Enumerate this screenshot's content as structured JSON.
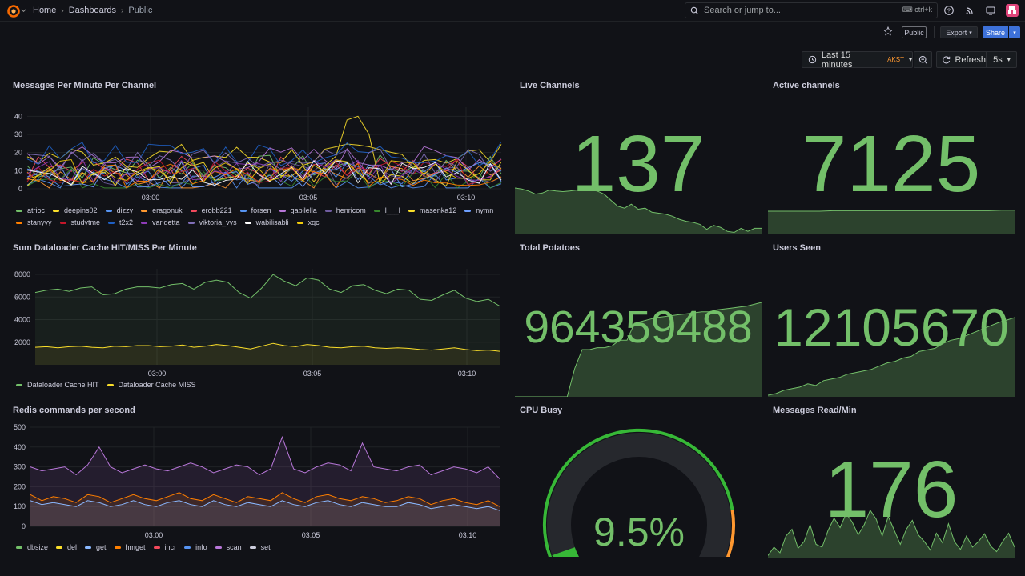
{
  "nav": {
    "home": "Home",
    "dashboards": "Dashboards",
    "current": "Public",
    "search_placeholder": "Search or jump to...",
    "search_shortcut": "ctrl+k"
  },
  "toolbar": {
    "public_badge": "Public",
    "export_label": "Export",
    "share_label": "Share",
    "time_range": "Last 15 minutes",
    "timezone": "AKST",
    "refresh_label": "Refresh",
    "refresh_interval": "5s"
  },
  "colors": {
    "green": "#73bf69",
    "bg": "#111217",
    "accent": "#3d71d9"
  },
  "panels": {
    "messages": {
      "title": "Messages Per Minute Per Channel",
      "legend": [
        {
          "name": "atrioc",
          "color": "#73bf69"
        },
        {
          "name": "deepins02",
          "color": "#fade2a"
        },
        {
          "name": "dizzy",
          "color": "#5794f2"
        },
        {
          "name": "eragonuk",
          "color": "#ff9830"
        },
        {
          "name": "erobb221",
          "color": "#f2495c"
        },
        {
          "name": "forsen",
          "color": "#5794f2"
        },
        {
          "name": "gabilella",
          "color": "#b877d9"
        },
        {
          "name": "henricom",
          "color": "#705da0"
        },
        {
          "name": "l___l",
          "color": "#37872d"
        },
        {
          "name": "masenka12",
          "color": "#fade2a"
        },
        {
          "name": "nymn",
          "color": "#6e9fff"
        },
        {
          "name": "stanyyy",
          "color": "#ff7f00"
        },
        {
          "name": "studytme",
          "color": "#c4162a"
        },
        {
          "name": "t2x2",
          "color": "#1f60c4"
        },
        {
          "name": "varidetta",
          "color": "#8f3bb8"
        },
        {
          "name": "viktoria_vys",
          "color": "#806eb7"
        },
        {
          "name": "wabilisabli",
          "color": "#ffffff"
        },
        {
          "name": "xqc",
          "color": "#f2cc0c"
        }
      ]
    },
    "dataloader": {
      "title": "Sum Dataloader Cache HIT/MISS Per Minute",
      "legend": [
        {
          "name": "Dataloader Cache HIT",
          "color": "#73bf69"
        },
        {
          "name": "Dataloader Cache MISS",
          "color": "#fade2a"
        }
      ]
    },
    "redis": {
      "title": "Redis commands per second",
      "legend": [
        {
          "name": "dbsize",
          "color": "#73bf69"
        },
        {
          "name": "del",
          "color": "#fade2a"
        },
        {
          "name": "get",
          "color": "#8ab8ff"
        },
        {
          "name": "hmget",
          "color": "#ff7f00"
        },
        {
          "name": "incr",
          "color": "#f2495c"
        },
        {
          "name": "info",
          "color": "#5794f2"
        },
        {
          "name": "scan",
          "color": "#b877d9"
        },
        {
          "name": "set",
          "color": "#ccccdc"
        }
      ]
    },
    "live_channels": {
      "title": "Live Channels",
      "value": "137"
    },
    "active_channels": {
      "title": "Active channels",
      "value": "7125"
    },
    "total_potatoes": {
      "title": "Total Potatoes",
      "value": "964359488"
    },
    "users_seen": {
      "title": "Users Seen",
      "value": "12105670"
    },
    "cpu_busy": {
      "title": "CPU Busy",
      "value": "9.5%",
      "percent": 9.5
    },
    "messages_read": {
      "title": "Messages Read/Min",
      "value": "176"
    }
  },
  "chart_data": [
    {
      "type": "line",
      "title": "Messages Per Minute Per Channel",
      "y_ticks": [
        "0",
        "10",
        "20",
        "30",
        "40"
      ],
      "x_ticks": [
        "03:00",
        "03:05",
        "03:10"
      ],
      "ylim": [
        0,
        45
      ],
      "series_count": 18,
      "highlight": {
        "name": "masenka12",
        "peak": 41
      }
    },
    {
      "type": "area",
      "title": "Sum Dataloader Cache HIT/MISS Per Minute",
      "y_ticks": [
        "2000",
        "4000",
        "6000",
        "8000"
      ],
      "x_ticks": [
        "03:00",
        "03:05",
        "03:10"
      ],
      "ylim": [
        0,
        8500
      ],
      "series": [
        {
          "name": "Dataloader Cache HIT",
          "values": [
            6400,
            6600,
            6700,
            6500,
            6800,
            6900,
            6200,
            6300,
            6700,
            6900,
            6900,
            6800,
            7100,
            7200,
            6700,
            7300,
            7500,
            7300,
            6400,
            5900,
            6800,
            8000,
            7400,
            7000,
            7700,
            7500,
            6700,
            6400,
            7000,
            7100,
            6600,
            6300,
            6700,
            6600,
            5800,
            5700,
            6200,
            6600,
            5900,
            5600,
            5800,
            5200
          ]
        },
        {
          "name": "Dataloader Cache MISS",
          "values": [
            1550,
            1600,
            1500,
            1600,
            1650,
            1550,
            1500,
            1650,
            1600,
            1700,
            1700,
            1600,
            1650,
            1750,
            1550,
            1650,
            1800,
            1700,
            1550,
            1400,
            1650,
            1900,
            1700,
            1600,
            1800,
            1700,
            1550,
            1500,
            1600,
            1650,
            1500,
            1450,
            1500,
            1450,
            1350,
            1300,
            1400,
            1500,
            1350,
            1250,
            1300,
            1200
          ]
        }
      ]
    },
    {
      "type": "area",
      "title": "Redis commands per second",
      "y_ticks": [
        "0",
        "100",
        "200",
        "300",
        "400",
        "500"
      ],
      "x_ticks": [
        "03:00",
        "03:05",
        "03:10"
      ],
      "ylim": [
        0,
        500
      ],
      "series": [
        {
          "name": "scan",
          "values": [
            300,
            280,
            290,
            300,
            260,
            310,
            400,
            300,
            270,
            290,
            310,
            290,
            280,
            300,
            320,
            300,
            270,
            290,
            310,
            300,
            260,
            290,
            450,
            290,
            270,
            300,
            320,
            310,
            280,
            420,
            300,
            290,
            280,
            300,
            310,
            260,
            280,
            300,
            290,
            270,
            300,
            240
          ]
        },
        {
          "name": "hmget",
          "values": [
            160,
            130,
            150,
            140,
            120,
            160,
            150,
            120,
            140,
            160,
            140,
            130,
            150,
            170,
            140,
            130,
            160,
            140,
            120,
            150,
            140,
            130,
            170,
            140,
            120,
            150,
            160,
            140,
            130,
            150,
            140,
            120,
            130,
            150,
            140,
            110,
            130,
            140,
            120,
            110,
            130,
            100
          ]
        },
        {
          "name": "get",
          "values": [
            130,
            110,
            120,
            110,
            100,
            130,
            120,
            100,
            110,
            130,
            110,
            100,
            120,
            130,
            110,
            100,
            130,
            110,
            100,
            120,
            110,
            100,
            130,
            110,
            100,
            120,
            130,
            110,
            100,
            120,
            110,
            100,
            100,
            120,
            110,
            90,
            100,
            110,
            100,
            90,
            100,
            80
          ]
        },
        {
          "name": "del",
          "values": [
            2,
            2,
            2,
            2,
            2,
            2,
            2,
            2,
            2,
            2,
            2,
            2,
            2,
            2,
            2,
            2,
            2,
            2,
            2,
            2,
            2,
            2,
            2,
            2,
            2,
            2,
            2,
            2,
            2,
            2,
            2,
            2,
            2,
            2,
            2,
            2,
            2,
            2,
            2,
            2,
            2,
            2
          ]
        }
      ]
    }
  ]
}
